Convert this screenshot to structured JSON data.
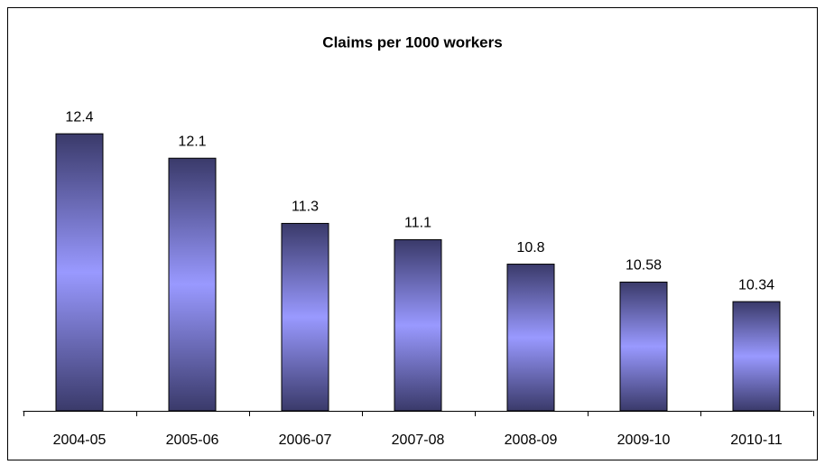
{
  "chart_data": {
    "type": "bar",
    "title": "Claims per 1000 workers",
    "categories": [
      "2004-05",
      "2005-06",
      "2006-07",
      "2007-08",
      "2008-09",
      "2009-10",
      "2010-11"
    ],
    "values": [
      12.4,
      12.1,
      11.3,
      11.1,
      10.8,
      10.58,
      10.34
    ],
    "ylim": [
      9,
      13
    ],
    "grid": false
  }
}
